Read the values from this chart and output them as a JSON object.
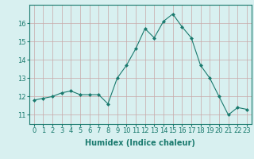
{
  "x": [
    0,
    1,
    2,
    3,
    4,
    5,
    6,
    7,
    8,
    9,
    10,
    11,
    12,
    13,
    14,
    15,
    16,
    17,
    18,
    19,
    20,
    21,
    22,
    23
  ],
  "y": [
    11.8,
    11.9,
    12.0,
    12.2,
    12.3,
    12.1,
    12.1,
    12.1,
    11.6,
    13.0,
    13.7,
    14.6,
    15.7,
    15.2,
    16.1,
    16.5,
    15.8,
    15.2,
    13.7,
    13.0,
    12.0,
    11.0,
    11.4,
    11.3
  ],
  "line_color": "#1a7a6e",
  "marker": "D",
  "marker_size": 2,
  "bg_color": "#d8f0f0",
  "grid_color": "#c8a8a8",
  "xlabel": "Humidex (Indice chaleur)",
  "xlabel_fontsize": 7,
  "tick_fontsize": 6,
  "ylim": [
    10.5,
    17.0
  ],
  "xlim": [
    -0.5,
    23.5
  ],
  "yticks": [
    11,
    12,
    13,
    14,
    15,
    16
  ],
  "xticks": [
    0,
    1,
    2,
    3,
    4,
    5,
    6,
    7,
    8,
    9,
    10,
    11,
    12,
    13,
    14,
    15,
    16,
    17,
    18,
    19,
    20,
    21,
    22,
    23
  ]
}
